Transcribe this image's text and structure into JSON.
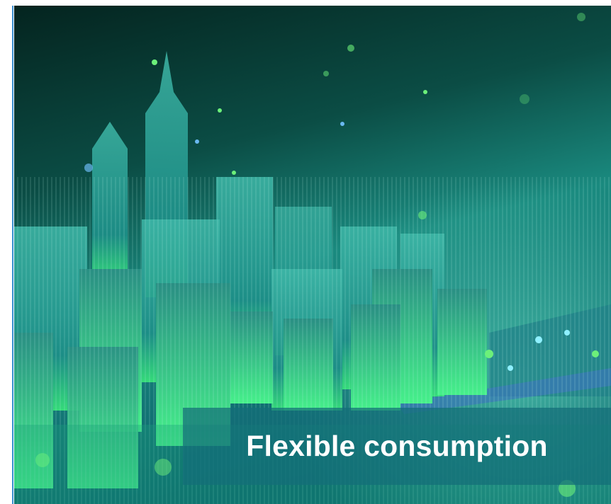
{
  "caption": "Flexible consumption"
}
